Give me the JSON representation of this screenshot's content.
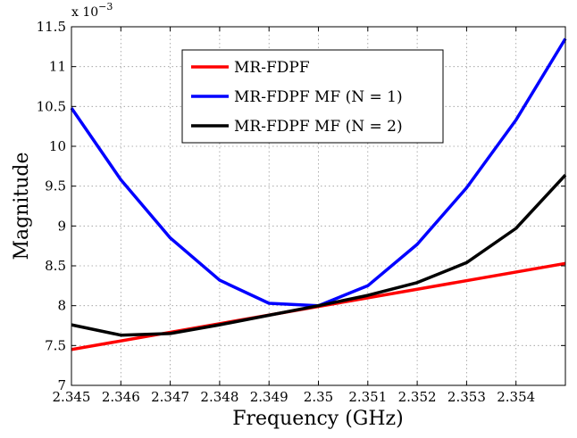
{
  "chart_data": {
    "type": "line",
    "title": "",
    "xlabel": "Frequency (GHz)",
    "ylabel": "Magnitude",
    "y_multiplier_label": {
      "base": "x 10",
      "exponent": "−3"
    },
    "xlim": [
      2.345,
      2.355
    ],
    "ylim": [
      7,
      11.5
    ],
    "grid": true,
    "legend_position": "top-center",
    "x_tick_labels": [
      "2.345",
      "2.346",
      "2.347",
      "2.348",
      "2.349",
      "2.35",
      "2.351",
      "2.352",
      "2.353",
      "2.354"
    ],
    "y_tick_labels": [
      "7",
      "7.5",
      "8",
      "8.5",
      "9",
      "9.5",
      "10",
      "10.5",
      "11",
      "11.5"
    ],
    "series": [
      {
        "name": "MR-FDPF",
        "color": "#ff0000",
        "x": [
          2.345,
          2.355
        ],
        "y": [
          7.45,
          8.53
        ]
      },
      {
        "name": "MR-FDPF MF (N = 1)",
        "color": "#0000ff",
        "x": [
          2.345,
          2.346,
          2.347,
          2.348,
          2.349,
          2.35,
          2.351,
          2.352,
          2.353,
          2.354,
          2.355
        ],
        "y": [
          10.48,
          9.58,
          8.85,
          8.32,
          8.03,
          8.0,
          8.25,
          8.77,
          9.48,
          10.33,
          11.35
        ]
      },
      {
        "name": "MR-FDPF MF (N = 2)",
        "color": "#000000",
        "x": [
          2.345,
          2.346,
          2.347,
          2.348,
          2.349,
          2.35,
          2.351,
          2.352,
          2.353,
          2.354,
          2.355
        ],
        "y": [
          7.76,
          7.63,
          7.65,
          7.76,
          7.88,
          8.0,
          8.13,
          8.29,
          8.54,
          8.97,
          9.64
        ]
      }
    ]
  }
}
